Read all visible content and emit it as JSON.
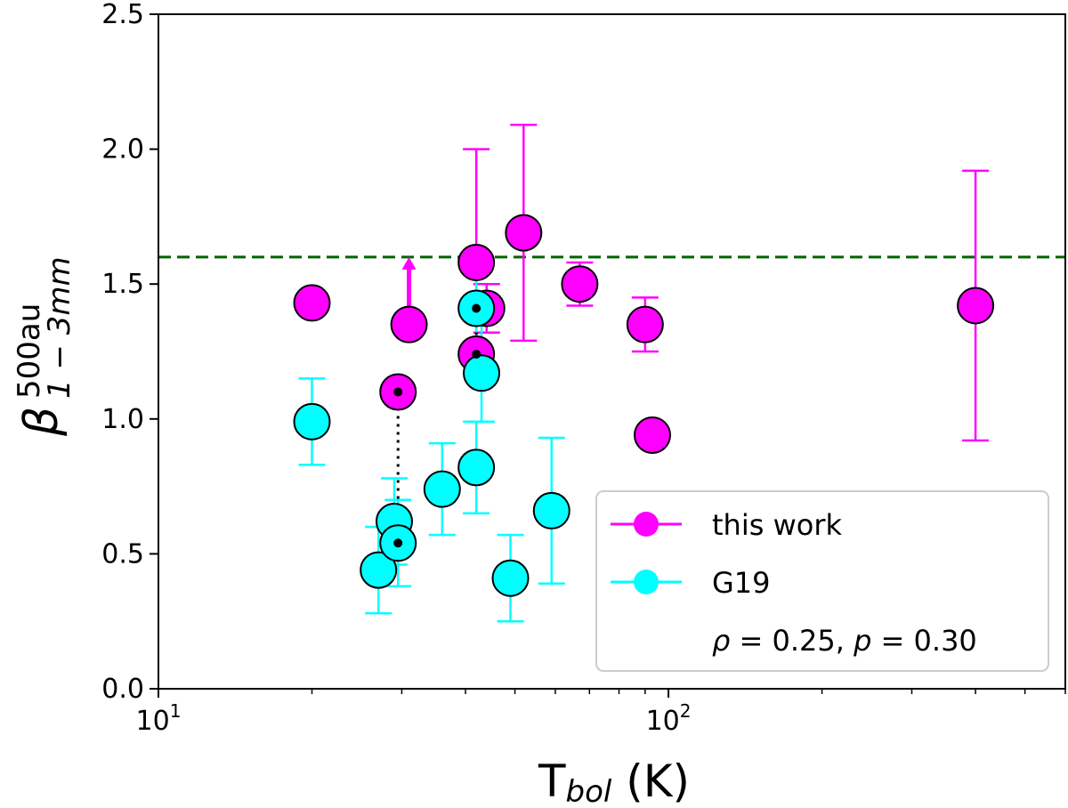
{
  "chart_data": {
    "type": "scatter",
    "xscale": "log",
    "xlim": [
      10,
      600
    ],
    "ylim": [
      0.0,
      2.5
    ],
    "x_ticks": [
      {
        "value": 10,
        "base": "10",
        "exp": "1"
      },
      {
        "value": 100,
        "base": "10",
        "exp": "2"
      }
    ],
    "y_ticks": [
      "0.0",
      "0.5",
      "1.0",
      "1.5",
      "2.0",
      "2.5"
    ],
    "xlabel": {
      "main": "T",
      "sub": "bol",
      "unit": " (K)"
    },
    "ylabel": {
      "main": "β",
      "sup": "500au",
      "sub": "1 − 3mm"
    },
    "reference_line": {
      "y": 1.6,
      "style": "dashed",
      "color": "#006400"
    },
    "series": [
      {
        "name": "this work",
        "color": "#ff00ff",
        "points": [
          {
            "x": 20,
            "y": 1.43
          },
          {
            "x": 29.5,
            "y": 1.1
          },
          {
            "x": 31,
            "y": 1.35,
            "lower_limit": true,
            "arrow_to": 1.6
          },
          {
            "x": 42,
            "y": 1.58,
            "yerr": [
              1.42,
              2.0
            ]
          },
          {
            "x": 42,
            "y": 1.24
          },
          {
            "x": 44,
            "y": 1.41,
            "yerr": [
              1.32,
              1.5
            ]
          },
          {
            "x": 52,
            "y": 1.69,
            "yerr": [
              1.29,
              2.09
            ]
          },
          {
            "x": 67,
            "y": 1.5,
            "yerr": [
              1.42,
              1.58
            ]
          },
          {
            "x": 90,
            "y": 1.35,
            "yerr": [
              1.25,
              1.45
            ]
          },
          {
            "x": 93,
            "y": 0.94
          },
          {
            "x": 400,
            "y": 1.42,
            "yerr": [
              0.92,
              1.92
            ]
          }
        ]
      },
      {
        "name": "G19",
        "color": "#00ffff",
        "points": [
          {
            "x": 20,
            "y": 0.99,
            "yerr": [
              0.83,
              1.15
            ]
          },
          {
            "x": 27,
            "y": 0.44,
            "yerr": [
              0.28,
              0.6
            ]
          },
          {
            "x": 29,
            "y": 0.62,
            "yerr": [
              0.46,
              0.78
            ]
          },
          {
            "x": 29.5,
            "y": 0.54,
            "yerr": [
              0.38,
              0.7
            ]
          },
          {
            "x": 36,
            "y": 0.74,
            "yerr": [
              0.57,
              0.91
            ]
          },
          {
            "x": 42,
            "y": 1.41,
            "yerr": [
              1.25,
              1.57
            ]
          },
          {
            "x": 42,
            "y": 0.82,
            "yerr": [
              0.65,
              0.99
            ]
          },
          {
            "x": 43,
            "y": 1.17,
            "yerr": [
              0.99,
              1.35
            ]
          },
          {
            "x": 49,
            "y": 0.41,
            "yerr": [
              0.25,
              0.57
            ]
          },
          {
            "x": 59,
            "y": 0.66,
            "yerr": [
              0.39,
              0.93
            ]
          }
        ]
      }
    ],
    "links": [
      {
        "x": 29.5,
        "y1": 1.1,
        "y2": 0.54
      },
      {
        "x": 42,
        "y1": 1.41,
        "y2": 1.24
      }
    ],
    "legend": {
      "position": "lower-right",
      "entries": [
        "this work",
        "G19"
      ],
      "annotation": {
        "rho_sym": "ρ",
        "rho_eq": " = 0.25, ",
        "p_sym": "p",
        "p_eq": " = 0.30"
      }
    }
  }
}
